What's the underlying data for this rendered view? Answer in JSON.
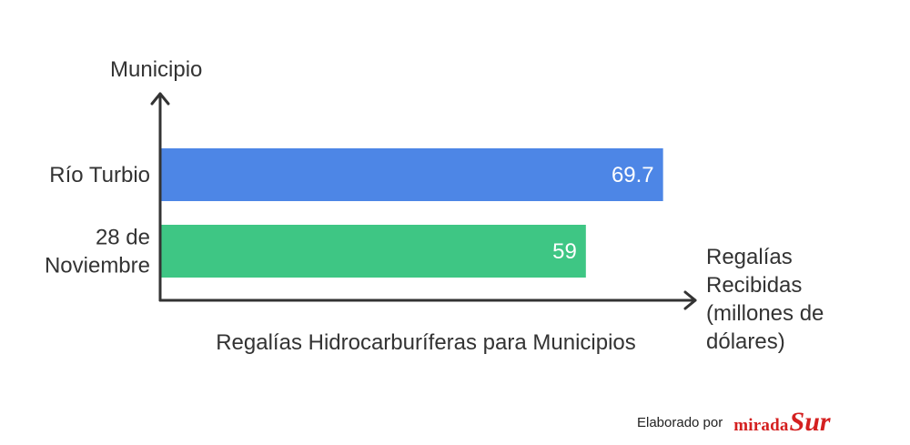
{
  "chart_data": {
    "type": "bar",
    "orientation": "horizontal",
    "title": "Regalías Hidrocarburíferas para Municipios",
    "ylabel": "Municipio",
    "xlabel_lines": [
      "Regalías",
      "Recibidas",
      "(millones de",
      "dólares)"
    ],
    "categories": [
      {
        "lines": [
          "Río Turbio"
        ]
      },
      {
        "lines": [
          "28 de",
          "Noviembre"
        ]
      }
    ],
    "values": [
      69.7,
      59
    ],
    "value_labels": [
      "69.7",
      "59"
    ],
    "colors": [
      "#4d86e6",
      "#3ec684"
    ],
    "xlim": [
      0,
      70.5
    ],
    "grid": false
  },
  "credit": {
    "text": "Elaborado por",
    "logo_part_a": "mirada",
    "logo_part_b": "Sur"
  }
}
